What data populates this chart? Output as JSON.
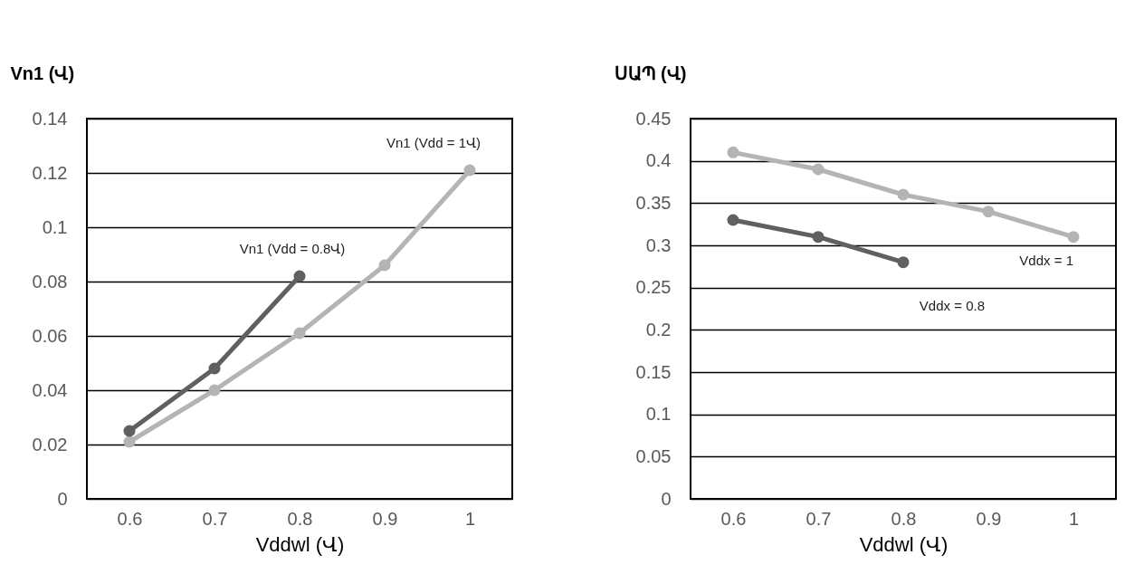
{
  "chart_data": [
    {
      "type": "line",
      "ylabel": "Vn1 (Վ)",
      "xlabel": "Vddwl (Վ)",
      "x": [
        0.6,
        0.7,
        0.8,
        0.9,
        1
      ],
      "series": [
        {
          "name": "Vn1 (Vdd = 1Վ)",
          "color": "#b4b4b4",
          "values": [
            0.021,
            0.04,
            0.061,
            0.086,
            0.121
          ]
        },
        {
          "name": "Vn1 (Vdd = 0.8Վ)",
          "color": "#606060",
          "values": [
            0.025,
            0.048,
            0.082,
            null,
            null
          ]
        }
      ],
      "xlim": [
        0.55,
        1.05
      ],
      "xticks": [
        0.6,
        0.7,
        0.8,
        0.9,
        1
      ],
      "ylim": [
        0,
        0.14
      ],
      "yticks": [
        0,
        0.02,
        0.04,
        0.06,
        0.08,
        0.1,
        0.12,
        0.14
      ],
      "grid": "y",
      "marker": "circle",
      "line_style": "solid",
      "legend": false
    },
    {
      "type": "line",
      "ylabel": "ՍԱՊ (Վ)",
      "xlabel": "Vddwl (Վ)",
      "x": [
        0.6,
        0.7,
        0.8,
        0.9,
        1
      ],
      "series": [
        {
          "name": "Vddx = 1",
          "color": "#b4b4b4",
          "values": [
            0.41,
            0.39,
            0.36,
            0.34,
            0.31
          ]
        },
        {
          "name": "Vddx = 0.8",
          "color": "#606060",
          "values": [
            0.33,
            0.31,
            0.28,
            null,
            null
          ]
        }
      ],
      "xlim": [
        0.55,
        1.05
      ],
      "xticks": [
        0.6,
        0.7,
        0.8,
        0.9,
        1
      ],
      "ylim": [
        0,
        0.45
      ],
      "yticks": [
        0,
        0.05,
        0.1,
        0.15,
        0.2,
        0.25,
        0.3,
        0.35,
        0.4,
        0.45
      ],
      "grid": "y",
      "marker": "circle",
      "line_style": "solid",
      "legend": false
    }
  ]
}
